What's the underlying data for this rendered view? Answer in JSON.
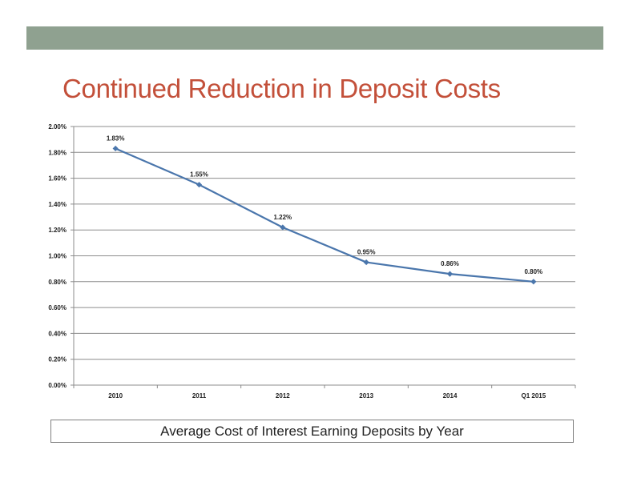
{
  "slide": {
    "title": "Continued Reduction in Deposit Costs",
    "caption": "Average Cost of Interest Earning Deposits by Year",
    "bar_color": "#8fa190",
    "title_color": "#c3503a"
  },
  "chart_data": {
    "type": "line",
    "title": "",
    "xlabel": "",
    "ylabel": "",
    "categories": [
      "2010",
      "2011",
      "2012",
      "2013",
      "2014",
      "Q1 2015"
    ],
    "series": [
      {
        "values": [
          1.83,
          1.55,
          1.22,
          0.95,
          0.86,
          0.8
        ],
        "data_labels": [
          "1.83%",
          "1.55%",
          "1.22%",
          "0.95%",
          "0.86%",
          "0.80%"
        ],
        "color": "#4a76ac",
        "marker": "diamond"
      }
    ],
    "ylim": [
      0,
      2.0
    ],
    "yticks": [
      "0.00%",
      "0.20%",
      "0.40%",
      "0.60%",
      "0.80%",
      "1.00%",
      "1.20%",
      "1.40%",
      "1.60%",
      "1.80%",
      "2.00%"
    ],
    "grid": true,
    "legend": "none"
  }
}
